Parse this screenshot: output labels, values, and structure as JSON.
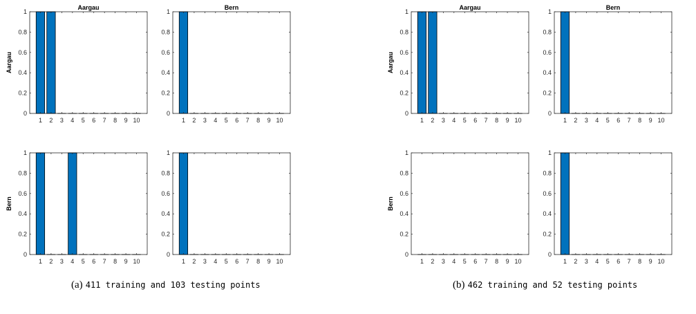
{
  "chart_data": [
    {
      "type": "bar",
      "panel": "a",
      "row_label": "Aargau",
      "title": "Aargau",
      "categories": [
        1,
        2,
        3,
        4,
        5,
        6,
        7,
        8,
        9,
        10
      ],
      "values": [
        1,
        1,
        0,
        0,
        0,
        0,
        0,
        0,
        0,
        0
      ],
      "ylim": [
        0,
        1
      ],
      "yticks": [
        "0",
        "0.2",
        "0.4",
        "0.6",
        "0.8",
        "1"
      ],
      "bar_color": "#0072BD"
    },
    {
      "type": "bar",
      "panel": "a",
      "row_label": "",
      "title": "Bern",
      "categories": [
        1,
        2,
        3,
        4,
        5,
        6,
        7,
        8,
        9,
        10
      ],
      "values": [
        1,
        0,
        0,
        0,
        0,
        0,
        0,
        0,
        0,
        0
      ],
      "ylim": [
        0,
        1
      ],
      "yticks": [
        "0",
        "0.2",
        "0.4",
        "0.6",
        "0.8",
        "1"
      ],
      "bar_color": "#0072BD"
    },
    {
      "type": "bar",
      "panel": "a",
      "row_label": "Bern",
      "title": "",
      "categories": [
        1,
        2,
        3,
        4,
        5,
        6,
        7,
        8,
        9,
        10
      ],
      "values": [
        1,
        0,
        0,
        1,
        0,
        0,
        0,
        0,
        0,
        0
      ],
      "ylim": [
        0,
        1
      ],
      "yticks": [
        "0",
        "0.2",
        "0.4",
        "0.6",
        "0.8",
        "1"
      ],
      "bar_color": "#0072BD"
    },
    {
      "type": "bar",
      "panel": "a",
      "row_label": "",
      "title": "",
      "categories": [
        1,
        2,
        3,
        4,
        5,
        6,
        7,
        8,
        9,
        10
      ],
      "values": [
        1,
        0,
        0,
        0,
        0,
        0,
        0,
        0,
        0,
        0
      ],
      "ylim": [
        0,
        1
      ],
      "yticks": [
        "0",
        "0.2",
        "0.4",
        "0.6",
        "0.8",
        "1"
      ],
      "bar_color": "#0072BD"
    },
    {
      "type": "bar",
      "panel": "b",
      "row_label": "Aargau",
      "title": "Aargau",
      "categories": [
        1,
        2,
        3,
        4,
        5,
        6,
        7,
        8,
        9,
        10
      ],
      "values": [
        1,
        1,
        0,
        0,
        0,
        0,
        0,
        0,
        0,
        0
      ],
      "ylim": [
        0,
        1
      ],
      "yticks": [
        "0",
        "0.2",
        "0.4",
        "0.6",
        "0.8",
        "1"
      ],
      "bar_color": "#0072BD"
    },
    {
      "type": "bar",
      "panel": "b",
      "row_label": "",
      "title": "Bern",
      "categories": [
        1,
        2,
        3,
        4,
        5,
        6,
        7,
        8,
        9,
        10
      ],
      "values": [
        1,
        0,
        0,
        0,
        0,
        0,
        0,
        0,
        0,
        0
      ],
      "ylim": [
        0,
        1
      ],
      "yticks": [
        "0",
        "0.2",
        "0.4",
        "0.6",
        "0.8",
        "1"
      ],
      "bar_color": "#0072BD"
    },
    {
      "type": "bar",
      "panel": "b",
      "row_label": "Bern",
      "title": "",
      "categories": [
        1,
        2,
        3,
        4,
        5,
        6,
        7,
        8,
        9,
        10
      ],
      "values": [
        0,
        0,
        0,
        0,
        0,
        0,
        0,
        0,
        0,
        0
      ],
      "ylim": [
        0,
        1
      ],
      "yticks": [
        "0",
        "0.2",
        "0.4",
        "0.6",
        "0.8",
        "1"
      ],
      "bar_color": "#0072BD"
    },
    {
      "type": "bar",
      "panel": "b",
      "row_label": "",
      "title": "",
      "categories": [
        1,
        2,
        3,
        4,
        5,
        6,
        7,
        8,
        9,
        10
      ],
      "values": [
        1,
        0,
        0,
        0,
        0,
        0,
        0,
        0,
        0,
        0
      ],
      "ylim": [
        0,
        1
      ],
      "yticks": [
        "0",
        "0.2",
        "0.4",
        "0.6",
        "0.8",
        "1"
      ],
      "bar_color": "#0072BD"
    }
  ],
  "captions": [
    {
      "letter": "(a)",
      "text": "411 training and 103 testing points"
    },
    {
      "letter": "(b)",
      "text": "462 training and 52 testing points"
    }
  ]
}
